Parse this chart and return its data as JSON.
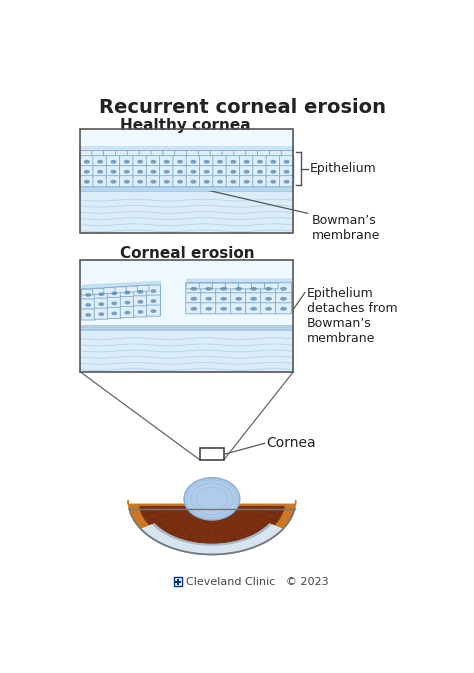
{
  "title": "Recurrent corneal erosion",
  "bg_color": "#ffffff",
  "title_fontsize": 14,
  "subtitle1": "Healthy cornea",
  "subtitle2": "Corneal erosion",
  "label_epithelium": "Epithelium",
  "label_bowman": "Bowman’s\nmembrane",
  "label_epithelium_detach": "Epithelium\ndetaches from\nBowman’s\nmembrane",
  "label_cornea": "Cornea",
  "cell_color_light": "#deeefa",
  "cell_color_mid": "#cce3f5",
  "cell_border": "#7aaac8",
  "cell_dot": "#4d7fa8",
  "epi_top_color": "#b8d8f0",
  "bowman_color": "#a8c8e0",
  "stroma_color": "#daedf8",
  "stroma_line": "#b0cce0",
  "box_bg": "#f0f8ff",
  "box_border": "#555555",
  "text_color": "#222222",
  "line_color": "#555555",
  "eye_sclera": "#d8eaf8",
  "eye_cornea_dome": "#c0d8f0",
  "eye_iris_bg": "#8B4513",
  "eye_iris_dark": "#6a3010",
  "eye_lens": "#b0d0f0",
  "eye_outline": "#777777",
  "footer_blue": "#003087",
  "footer_text": "#444444"
}
